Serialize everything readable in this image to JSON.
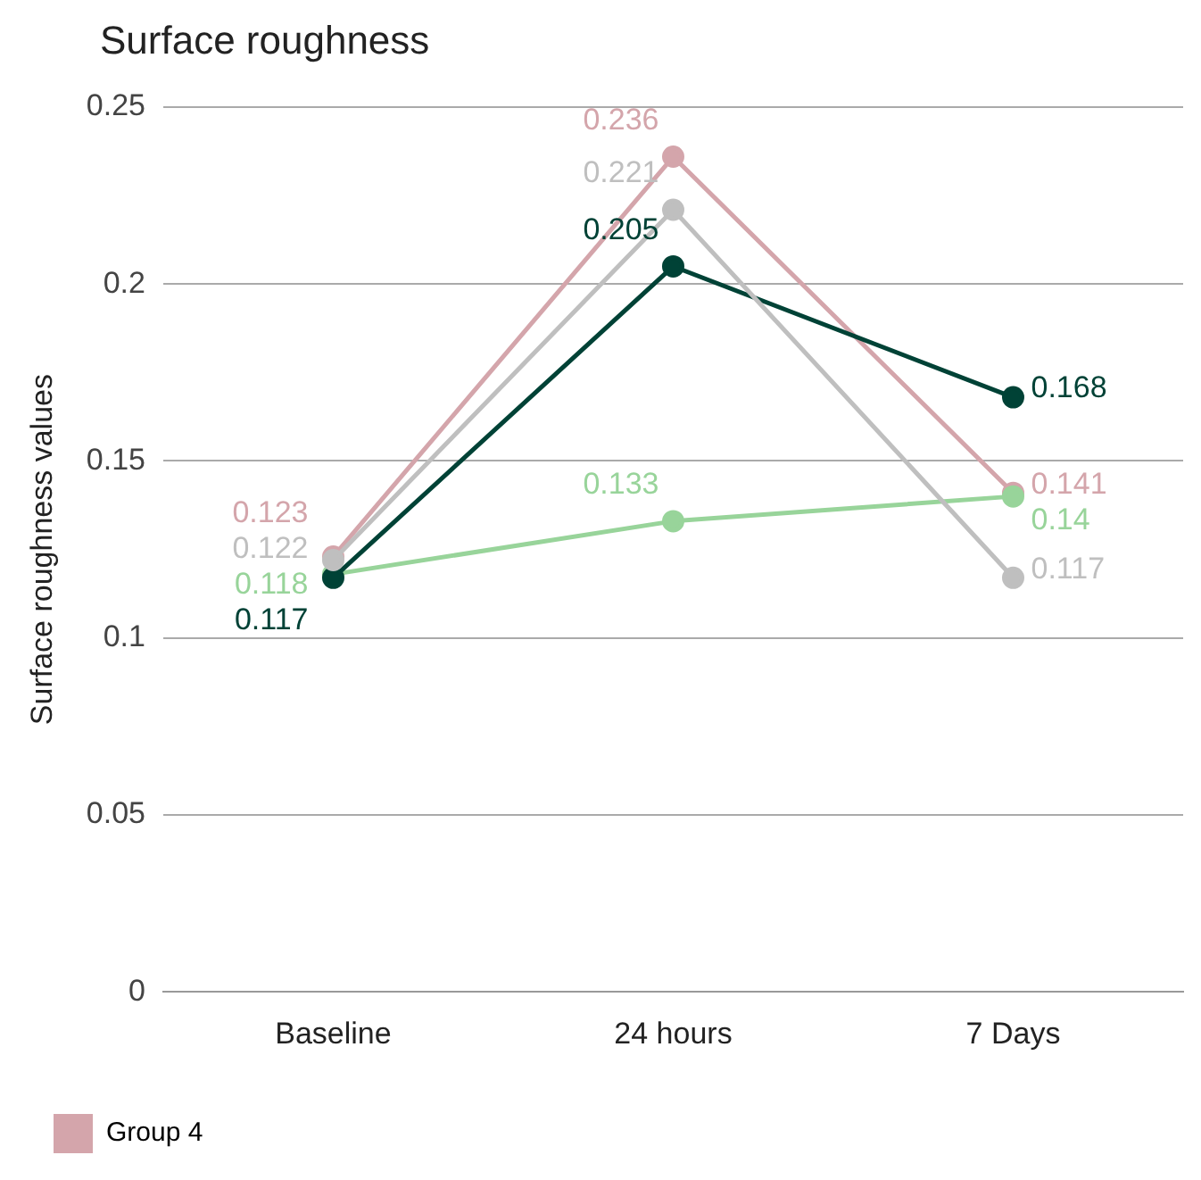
{
  "chart_data": {
    "type": "line",
    "title": "Surface roughness",
    "ylabel": "Surface roughness values",
    "categories": [
      "Baseline",
      "24 hours",
      "7 Days"
    ],
    "series": [
      {
        "color": "#bfbfbf",
        "values": [
          0.122,
          0.221,
          0.117
        ]
      },
      {
        "color": "#004236",
        "values": [
          0.117,
          0.205,
          0.168
        ]
      },
      {
        "color": "#98d49a",
        "values": [
          0.118,
          0.133,
          0.14
        ]
      },
      {
        "name": "Group 4",
        "color": "#d4a5ab",
        "values": [
          0.123,
          0.236,
          0.141
        ]
      }
    ],
    "ylim": [
      0,
      0.25
    ],
    "yticks": [
      0,
      0.05,
      0.1,
      0.15,
      0.2,
      0.25
    ],
    "grid": "y",
    "legend": "bottom",
    "marker": "circle",
    "line_style": "solid",
    "data_labels": true
  }
}
